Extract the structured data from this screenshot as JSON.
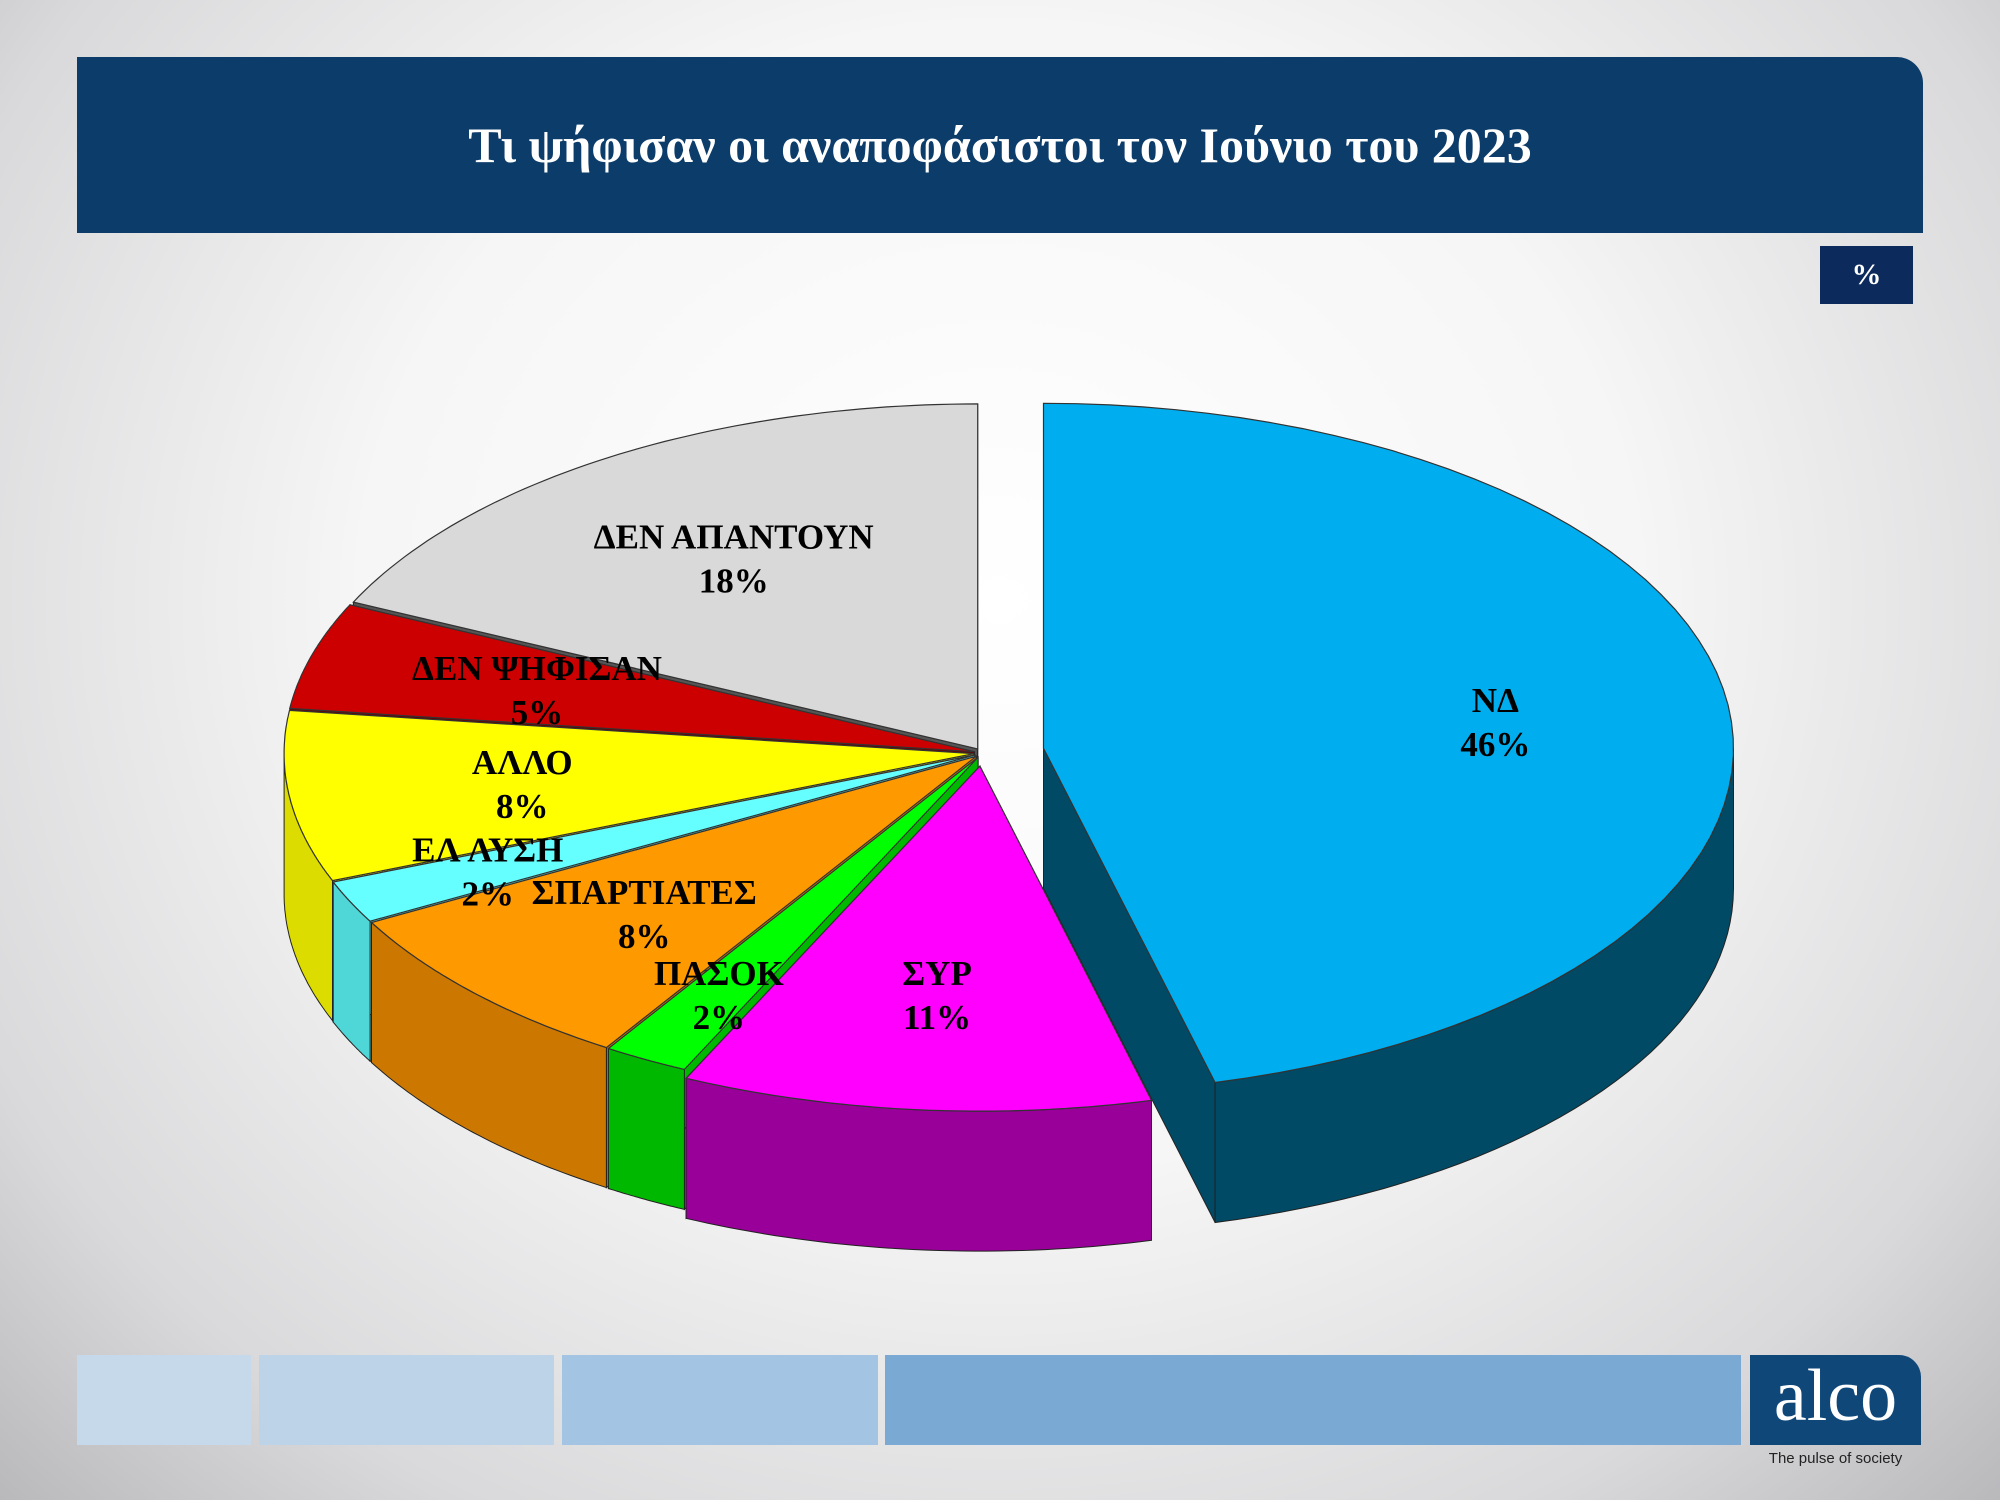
{
  "header": {
    "title": "Τι ψήφισαν οι αναποφάσιστοι τον Ιούνιο του 2023"
  },
  "unit_badge": "%",
  "chart_data": {
    "type": "pie",
    "style": "3d-exploded",
    "title": "Τι ψήφισαν οι αναποφάσιστοι τον Ιούνιο του 2023",
    "unit": "%",
    "slices": [
      {
        "label": "ΝΔ",
        "value": 46,
        "display": "46%",
        "color": "#00AEEF",
        "side": "#004A66"
      },
      {
        "label": "ΣΥΡ",
        "value": 11,
        "display": "11%",
        "color": "#FF00FF",
        "side": "#990099"
      },
      {
        "label": "ΠΑΣΟΚ",
        "value": 2,
        "display": "2%",
        "color": "#00FF00",
        "side": "#00B800"
      },
      {
        "label": "ΣΠΑΡΤΙΑΤΕΣ",
        "value": 8,
        "display": "8%",
        "color": "#FF9900",
        "side": "#CC7700"
      },
      {
        "label": "ΕΛ ΛΥΣΗ",
        "value": 2,
        "display": "2%",
        "color": "#66FFFF",
        "side": "#4FD6D6"
      },
      {
        "label": "ΑΛΛΟ",
        "value": 8,
        "display": "8%",
        "color": "#FFFF00",
        "side": "#DCDC00"
      },
      {
        "label": "ΔΕΝ ΨΗΦΙΣΑΝ",
        "value": 5,
        "display": "5%",
        "color": "#CC0000",
        "side": "#6A0000"
      },
      {
        "label": "ΔΕΝ ΑΠΑΝΤΟΥΝ",
        "value": 18,
        "display": "18%",
        "color": "#D9D9D9",
        "side": "#555555"
      }
    ]
  },
  "footer": {
    "logo": "alco",
    "tagline": "The pulse of society",
    "bar_colors": [
      "#c5d9ea",
      "#bcd3e8",
      "#a3c5e3",
      "#7aaad3"
    ]
  }
}
